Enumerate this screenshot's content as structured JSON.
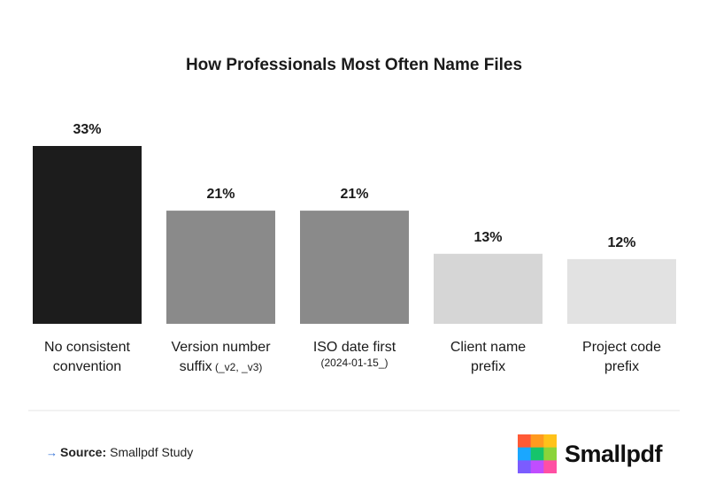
{
  "chart_data": {
    "type": "bar",
    "title": "How Professionals Most Often Name Files",
    "categories": [
      {
        "line1": "No consistent",
        "line2": "convention",
        "line2_suffix": ""
      },
      {
        "line1": "Version number",
        "line2": "suffix",
        "line2_suffix": "(_v2, _v3)"
      },
      {
        "line1": "ISO date first",
        "line2": "",
        "line2_suffix": "(2024-01-15_)"
      },
      {
        "line1": "Client name",
        "line2": "prefix",
        "line2_suffix": ""
      },
      {
        "line1": "Project code",
        "line2": "prefix",
        "line2_suffix": ""
      }
    ],
    "values": [
      33,
      21,
      21,
      13,
      12
    ],
    "value_labels": [
      "33%",
      "21%",
      "21%",
      "13%",
      "12%"
    ],
    "bar_colors": [
      "#1c1c1c",
      "#8a8a8a",
      "#8a8a8a",
      "#d6d6d6",
      "#e2e2e2"
    ],
    "ylim": [
      0,
      33
    ],
    "grid": false,
    "legend": "none"
  },
  "footer": {
    "source_label": "Source:",
    "source_text": "Smallpdf Study",
    "arrow_icon": "arrow-right-icon",
    "accent_color": "#2f6fd6"
  },
  "brand": {
    "name": "Smallpdf",
    "logo_icon": "smallpdf-logo-icon",
    "logo_colors": [
      "#ff5a36",
      "#ff9a1f",
      "#ffc21a",
      "#1aa7ff",
      "#16c46b",
      "#8bd43a",
      "#7b5cff",
      "#c04dff",
      "#ff4fa3"
    ]
  }
}
